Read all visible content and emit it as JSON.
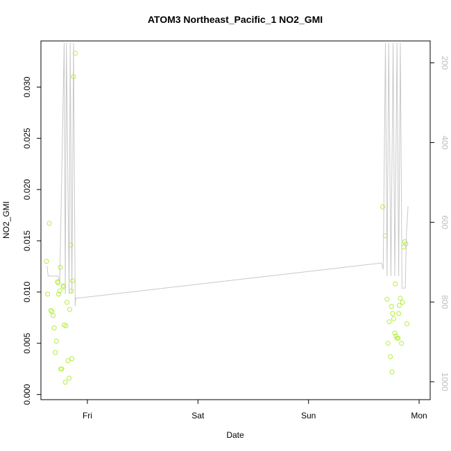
{
  "chart_data": {
    "type": "scatter",
    "title": "ATOM3 Northeast_Pacific_1 NO2_GMI",
    "xlabel": "Date",
    "ylabel": "NO2_GMI",
    "x_unit": "days",
    "xlim": [
      -0.42,
      3.1
    ],
    "ylim": [
      -0.0005,
      0.0345
    ],
    "x_ticks": [
      {
        "value": 0,
        "label": "Fri"
      },
      {
        "value": 1,
        "label": "Sat"
      },
      {
        "value": 2,
        "label": "Sun"
      },
      {
        "value": 3,
        "label": "Mon"
      }
    ],
    "y_ticks": [
      0.0,
      0.005,
      0.01,
      0.015,
      0.02,
      0.025,
      0.03
    ],
    "y_tick_labels": [
      "0.000",
      "0.005",
      "0.010",
      "0.015",
      "0.020",
      "0.025",
      "0.030"
    ],
    "y2_lim": [
      1045,
      145
    ],
    "y2_ticks": [
      200,
      400,
      600,
      800,
      1000
    ],
    "y2_tick_labels": [
      "200",
      "400",
      "600",
      "800",
      "1000"
    ],
    "grid": false,
    "series": [
      {
        "kind": "points",
        "color": "#b3ee3a",
        "points": [
          [
            -0.37,
            0.013
          ],
          [
            -0.36,
            0.0098
          ],
          [
            -0.345,
            0.0167
          ],
          [
            -0.33,
            0.0082
          ],
          [
            -0.32,
            0.0081
          ],
          [
            -0.31,
            0.0077
          ],
          [
            -0.3,
            0.0065
          ],
          [
            -0.29,
            0.0041
          ],
          [
            -0.28,
            0.0052
          ],
          [
            -0.27,
            0.011
          ],
          [
            -0.265,
            0.0109
          ],
          [
            -0.26,
            0.0098
          ],
          [
            -0.25,
            0.0101
          ],
          [
            -0.245,
            0.0124
          ],
          [
            -0.24,
            0.0025
          ],
          [
            -0.232,
            0.0025
          ],
          [
            -0.22,
            0.0106
          ],
          [
            -0.215,
            0.0105
          ],
          [
            -0.21,
            0.0068
          ],
          [
            -0.2,
            0.0012
          ],
          [
            -0.195,
            0.0067
          ],
          [
            -0.185,
            0.009
          ],
          [
            -0.175,
            0.0033
          ],
          [
            -0.165,
            0.0016
          ],
          [
            -0.16,
            0.0083
          ],
          [
            -0.15,
            0.0146
          ],
          [
            -0.145,
            0.0101
          ],
          [
            -0.14,
            0.0035
          ],
          [
            -0.135,
            0.0111
          ],
          [
            -0.125,
            0.031
          ],
          [
            -0.11,
            0.0333
          ],
          [
            2.67,
            0.0183
          ],
          [
            2.695,
            0.0155
          ],
          [
            2.71,
            0.0093
          ],
          [
            2.72,
            0.005
          ],
          [
            2.73,
            0.0071
          ],
          [
            2.74,
            0.0037
          ],
          [
            2.75,
            0.0086
          ],
          [
            2.755,
            0.0022
          ],
          [
            2.76,
            0.0079
          ],
          [
            2.77,
            0.0074
          ],
          [
            2.78,
            0.006
          ],
          [
            2.785,
            0.0108
          ],
          [
            2.79,
            0.0057
          ],
          [
            2.8,
            0.0055
          ],
          [
            2.81,
            0.0055
          ],
          [
            2.815,
            0.0079
          ],
          [
            2.82,
            0.0087
          ],
          [
            2.83,
            0.0094
          ],
          [
            2.84,
            0.005
          ],
          [
            2.85,
            0.009
          ],
          [
            2.86,
            0.0144
          ],
          [
            2.87,
            0.0149
          ],
          [
            2.88,
            0.0147
          ],
          [
            2.89,
            0.0069
          ]
        ]
      },
      {
        "kind": "line",
        "axis": "y2",
        "color": "#c8c8c8",
        "points": [
          [
            -0.365,
            710
          ],
          [
            -0.355,
            735
          ],
          [
            -0.3,
            735
          ],
          [
            -0.265,
            735
          ],
          [
            -0.25,
            750
          ],
          [
            -0.21,
            150
          ],
          [
            -0.2,
            780
          ],
          [
            -0.19,
            150
          ],
          [
            -0.165,
            780
          ],
          [
            -0.155,
            150
          ],
          [
            -0.14,
            780
          ],
          [
            -0.125,
            150
          ],
          [
            -0.11,
            810
          ],
          [
            -0.105,
            790
          ],
          [
            -0.075,
            790
          ],
          [
            2.66,
            702
          ],
          [
            2.675,
            718
          ],
          [
            2.695,
            150
          ],
          [
            2.71,
            735
          ],
          [
            2.725,
            150
          ],
          [
            2.745,
            735
          ],
          [
            2.765,
            150
          ],
          [
            2.78,
            735
          ],
          [
            2.8,
            150
          ],
          [
            2.815,
            735
          ],
          [
            2.83,
            150
          ],
          [
            2.845,
            765
          ],
          [
            2.875,
            765
          ],
          [
            2.885,
            630
          ],
          [
            2.9,
            560
          ]
        ]
      }
    ]
  }
}
